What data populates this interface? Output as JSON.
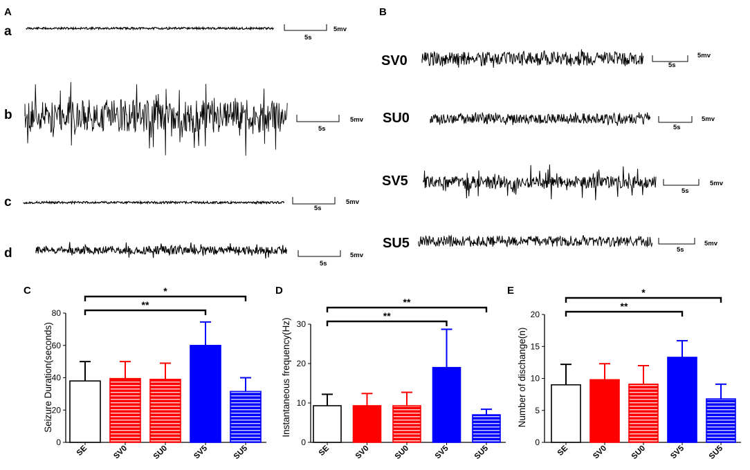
{
  "panel_A": {
    "label": "A",
    "traces": [
      {
        "id": "a",
        "scale_time": "5s",
        "scale_amp": "5mv"
      },
      {
        "id": "b",
        "scale_time": "5s",
        "scale_amp": "5mv"
      },
      {
        "id": "c",
        "scale_time": "5s",
        "scale_amp": "5mv"
      },
      {
        "id": "d",
        "scale_time": "5s",
        "scale_amp": "5mv"
      }
    ]
  },
  "panel_B": {
    "label": "B",
    "traces": [
      {
        "id": "SV0",
        "scale_time": "5s",
        "scale_amp": "5mv"
      },
      {
        "id": "SU0",
        "scale_time": "5s",
        "scale_amp": "5mv"
      },
      {
        "id": "SV5",
        "scale_time": "5s",
        "scale_amp": "5mv"
      },
      {
        "id": "SU5",
        "scale_time": "5s",
        "scale_amp": "5mv"
      }
    ]
  },
  "colors": {
    "red": "#ff0000",
    "blue": "#0000ff",
    "black": "#000000",
    "white": "#ffffff"
  },
  "chart_data": [
    {
      "panel": "C",
      "type": "bar",
      "ylabel": "Seizure Duration(seconds)",
      "ylim": [
        0,
        80
      ],
      "yticks": [
        "0",
        "20",
        "40",
        "60",
        "80"
      ],
      "categories": [
        "SE",
        "SV0",
        "SU0",
        "SV5",
        "SU5"
      ],
      "values": [
        38,
        39.5,
        39,
        60,
        31.5
      ],
      "errors": [
        12,
        10.5,
        10,
        14.5,
        8.5
      ],
      "styles": [
        "white",
        "red-hatched",
        "red-hatched",
        "blue",
        "blue-hatched"
      ],
      "significance": [
        {
          "from": "SE",
          "to": "SV5",
          "label": "**"
        },
        {
          "from": "SE",
          "to": "SU5",
          "label": "*"
        }
      ]
    },
    {
      "panel": "D",
      "type": "bar",
      "ylabel": "Instantaneous frequency(Hz)",
      "ylim": [
        0,
        30
      ],
      "yticks": [
        "0",
        "10",
        "20",
        "30"
      ],
      "categories": [
        "SE",
        "SV0",
        "SU0",
        "SV5",
        "SU5"
      ],
      "values": [
        9.3,
        9.3,
        9.3,
        19,
        7
      ],
      "errors": [
        2.9,
        3.1,
        3.4,
        9.7,
        1.4
      ],
      "styles": [
        "white",
        "red",
        "red-hatched",
        "blue",
        "blue-hatched"
      ],
      "significance": [
        {
          "from": "SE",
          "to": "SV5",
          "label": "**"
        },
        {
          "from": "SE",
          "to": "SU5",
          "label": "**"
        }
      ]
    },
    {
      "panel": "E",
      "type": "bar",
      "ylabel": "Number of dischange(n)",
      "ylim": [
        0,
        20
      ],
      "yticks": [
        "0",
        "5",
        "10",
        "15",
        "20"
      ],
      "categories": [
        "SE",
        "SV0",
        "SU0",
        "SV5",
        "SU5"
      ],
      "values": [
        9,
        9.8,
        9.1,
        13.3,
        6.8
      ],
      "errors": [
        3.2,
        2.5,
        2.9,
        2.6,
        2.3
      ],
      "styles": [
        "white",
        "red",
        "red-hatched",
        "blue",
        "blue-hatched"
      ],
      "significance": [
        {
          "from": "SE",
          "to": "SV5",
          "label": "**"
        },
        {
          "from": "SE",
          "to": "SU5",
          "label": "*"
        }
      ]
    }
  ]
}
